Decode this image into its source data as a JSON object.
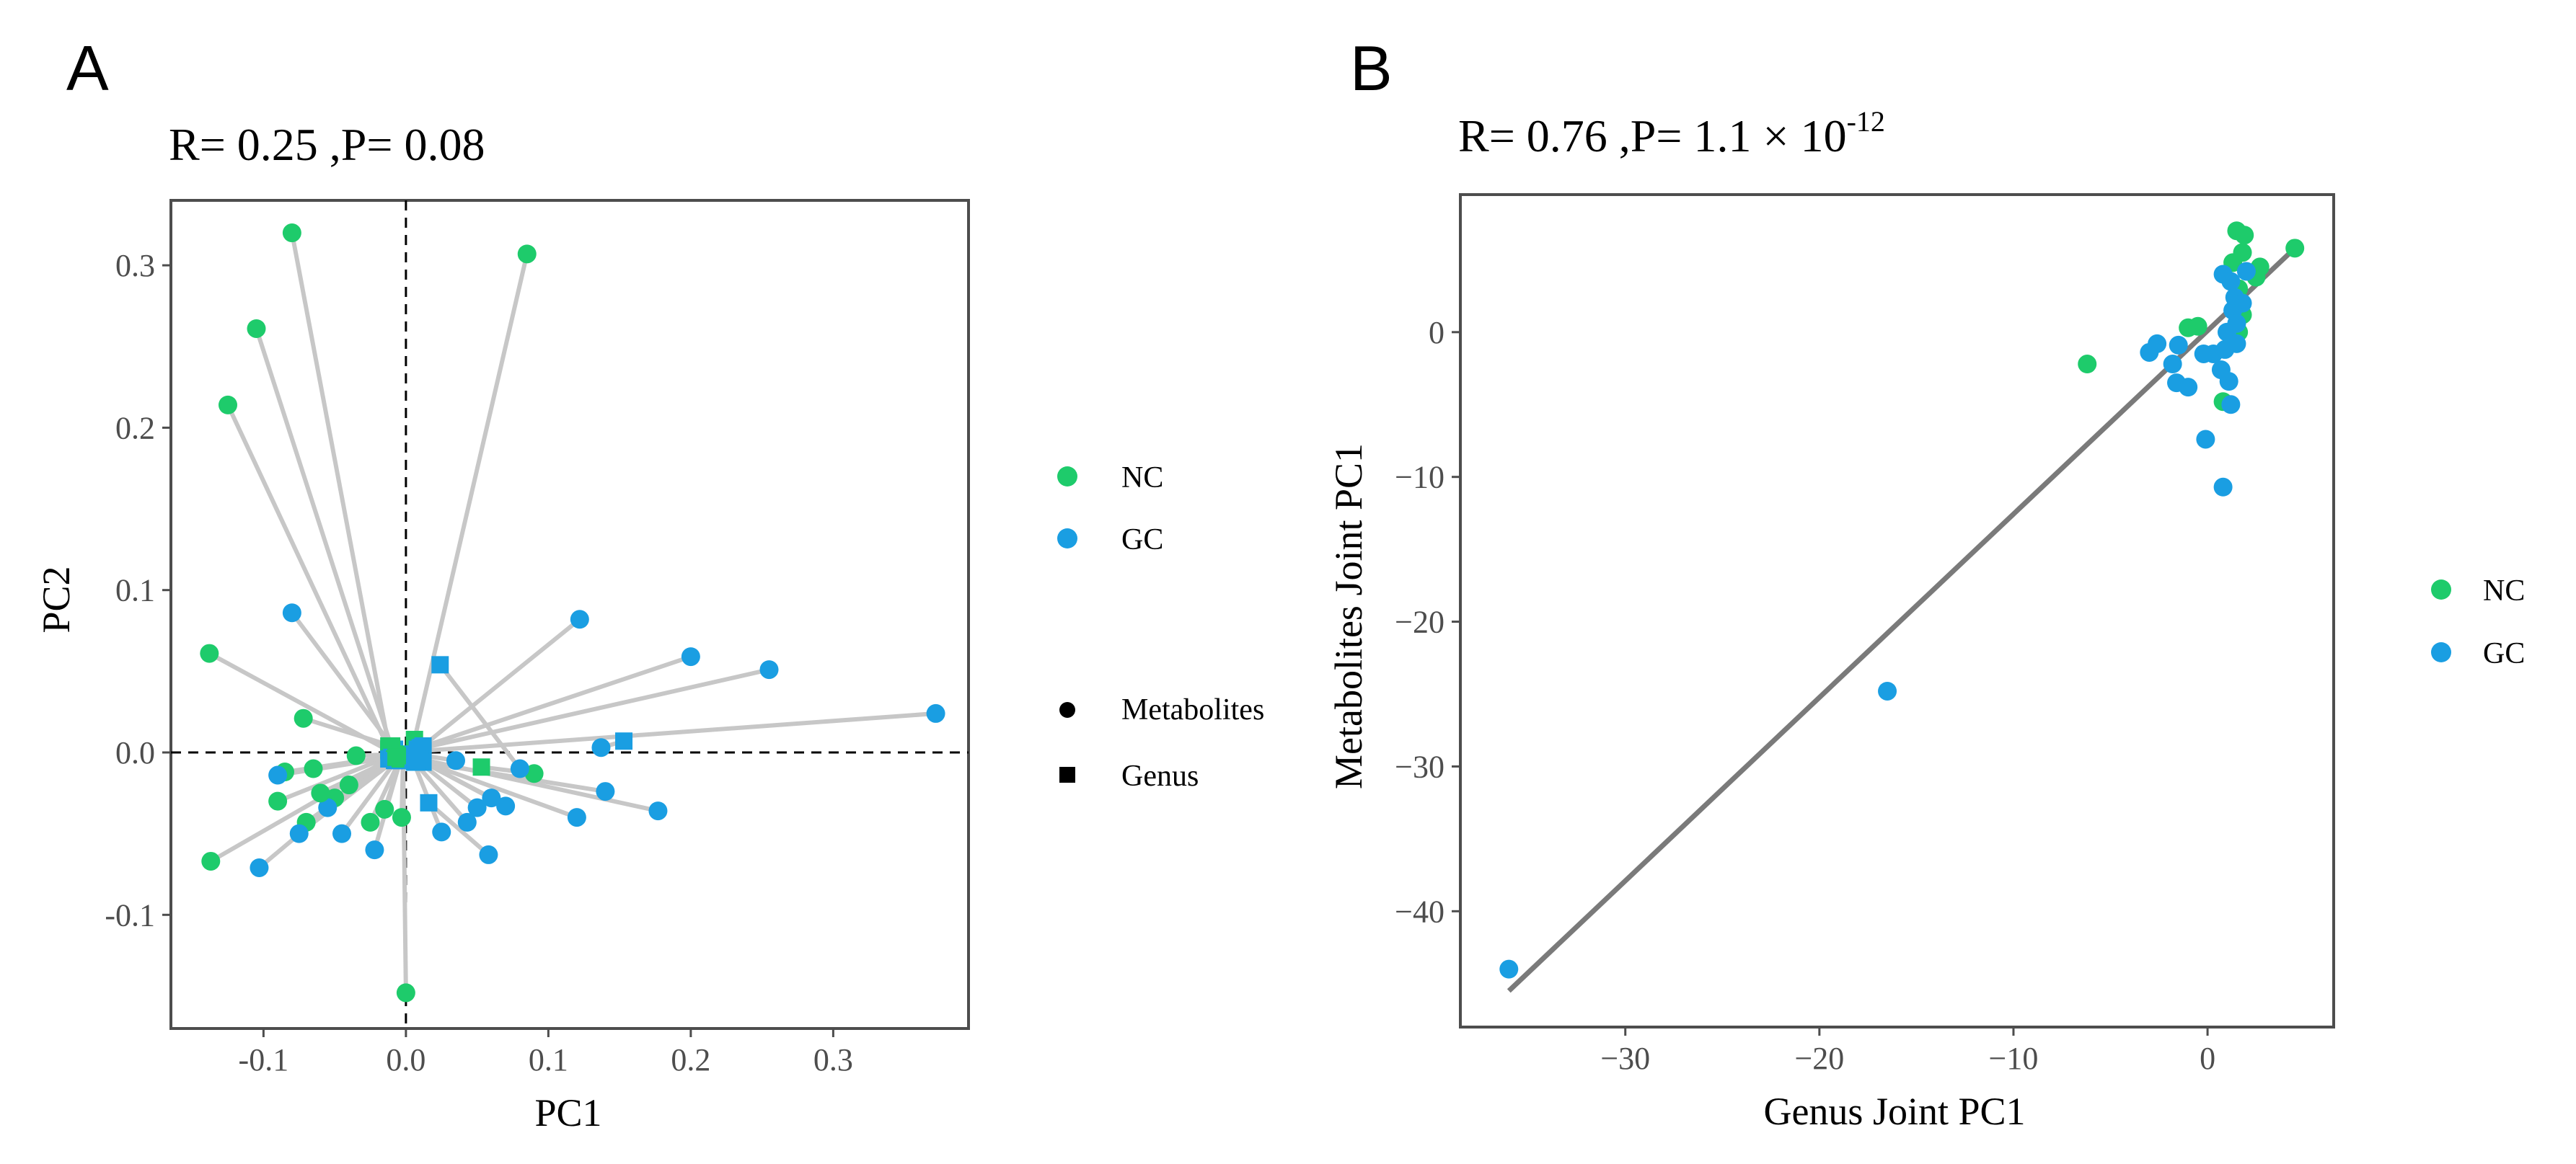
{
  "colors": {
    "nc": "#1ecb6b",
    "gc": "#1a9ee2",
    "line": "#c7c7c7",
    "fit": "#7a7a7a",
    "frame": "#4d4d4d"
  },
  "legend_a": {
    "groups": [
      "NC",
      "GC"
    ],
    "shapes": [
      "Metabolites",
      "Genus"
    ]
  },
  "legend_b": {
    "groups": [
      "NC",
      "GC"
    ]
  },
  "chart_data": [
    {
      "panel": "A",
      "type": "scatter",
      "stat": "R= 0.25 ,P= 0.08",
      "xlabel": "PC1",
      "ylabel": "PC2",
      "xlim": [
        -0.165,
        0.395
      ],
      "ylim": [
        -0.17,
        0.34
      ],
      "xticks": [
        -0.1,
        0.0,
        0.1,
        0.2,
        0.3
      ],
      "xtick_labels": [
        "-0.1",
        "0.0",
        "0.1",
        "0.2",
        "0.3"
      ],
      "yticks": [
        -0.1,
        0.0,
        0.1,
        0.2,
        0.3
      ],
      "ytick_labels": [
        "-0.1",
        "0.0",
        "0.1",
        "0.2",
        "0.3"
      ],
      "reference_lines": {
        "x": 0,
        "y": 0
      },
      "pairs": [
        {
          "group": "NC",
          "metabolite": [
            -0.08,
            0.32
          ],
          "genus": [
            -0.012,
            0.004
          ]
        },
        {
          "group": "NC",
          "metabolite": [
            0.085,
            0.307
          ],
          "genus": [
            0.006,
            0.008
          ]
        },
        {
          "group": "NC",
          "metabolite": [
            -0.105,
            0.261
          ],
          "genus": [
            -0.01,
            0.003
          ]
        },
        {
          "group": "NC",
          "metabolite": [
            -0.125,
            0.214
          ],
          "genus": [
            -0.012,
            0.002
          ]
        },
        {
          "group": "GC",
          "metabolite": [
            -0.08,
            0.086
          ],
          "genus": [
            -0.008,
            0.002
          ]
        },
        {
          "group": "NC",
          "metabolite": [
            -0.138,
            0.061
          ],
          "genus": [
            -0.012,
            0.001
          ]
        },
        {
          "group": "NC",
          "metabolite": [
            -0.072,
            0.021
          ],
          "genus": [
            -0.01,
            0.004
          ]
        },
        {
          "group": "GC",
          "metabolite": [
            0.122,
            0.082
          ],
          "genus": [
            0.012,
            0.004
          ]
        },
        {
          "group": "GC",
          "metabolite": [
            0.2,
            0.059
          ],
          "genus": [
            0.01,
            0.003
          ]
        },
        {
          "group": "GC",
          "metabolite": [
            0.255,
            0.051
          ],
          "genus": [
            0.008,
            0.002
          ]
        },
        {
          "group": "GC",
          "metabolite": [
            0.372,
            0.024
          ],
          "genus": [
            0.012,
            0.001
          ]
        },
        {
          "group": "GC",
          "metabolite": [
            0.137,
            0.003
          ],
          "genus": [
            0.153,
            0.007
          ]
        },
        {
          "group": "NC",
          "metabolite": [
            0.09,
            -0.013
          ],
          "genus": [
            0.053,
            -0.009
          ]
        },
        {
          "group": "GC",
          "metabolite": [
            0.08,
            -0.01
          ],
          "genus": [
            0.024,
            0.054
          ]
        },
        {
          "group": "GC",
          "metabolite": [
            0.177,
            -0.036
          ],
          "genus": [
            0.01,
            -0.004
          ]
        },
        {
          "group": "GC",
          "metabolite": [
            0.14,
            -0.024
          ],
          "genus": [
            0.012,
            -0.006
          ]
        },
        {
          "group": "GC",
          "metabolite": [
            0.12,
            -0.04
          ],
          "genus": [
            0.01,
            -0.005
          ]
        },
        {
          "group": "GC",
          "metabolite": [
            0.058,
            -0.063
          ],
          "genus": [
            0.016,
            -0.031
          ]
        },
        {
          "group": "NC",
          "metabolite": [
            -0.137,
            -0.067
          ],
          "genus": [
            -0.01,
            -0.003
          ]
        },
        {
          "group": "GC",
          "metabolite": [
            -0.103,
            -0.071
          ],
          "genus": [
            -0.012,
            -0.004
          ]
        },
        {
          "group": "NC",
          "metabolite": [
            0.0,
            -0.148
          ],
          "genus": [
            -0.002,
            -0.002
          ]
        },
        {
          "group": "NC",
          "metabolite": [
            -0.09,
            -0.03
          ],
          "genus": [
            -0.01,
            -0.002
          ]
        },
        {
          "group": "NC",
          "metabolite": [
            -0.085,
            -0.012
          ],
          "genus": [
            -0.008,
            -0.002
          ]
        },
        {
          "group": "GC",
          "metabolite": [
            -0.09,
            -0.014
          ],
          "genus": [
            -0.01,
            -0.003
          ]
        },
        {
          "group": "NC",
          "metabolite": [
            -0.065,
            -0.01
          ],
          "genus": [
            -0.006,
            -0.002
          ]
        },
        {
          "group": "NC",
          "metabolite": [
            -0.035,
            -0.002
          ],
          "genus": [
            -0.004,
            -0.001
          ]
        },
        {
          "group": "NC",
          "metabolite": [
            -0.05,
            -0.028
          ],
          "genus": [
            -0.006,
            -0.003
          ]
        },
        {
          "group": "GC",
          "metabolite": [
            -0.055,
            -0.034
          ],
          "genus": [
            -0.006,
            -0.004
          ]
        },
        {
          "group": "NC",
          "metabolite": [
            -0.07,
            -0.043
          ],
          "genus": [
            -0.008,
            -0.004
          ]
        },
        {
          "group": "GC",
          "metabolite": [
            -0.075,
            -0.05
          ],
          "genus": [
            -0.008,
            -0.005
          ]
        },
        {
          "group": "GC",
          "metabolite": [
            -0.045,
            -0.05
          ],
          "genus": [
            -0.006,
            -0.004
          ]
        },
        {
          "group": "GC",
          "metabolite": [
            -0.022,
            -0.06
          ],
          "genus": [
            -0.004,
            -0.005
          ]
        },
        {
          "group": "NC",
          "metabolite": [
            -0.025,
            -0.043
          ],
          "genus": [
            -0.004,
            -0.004
          ]
        },
        {
          "group": "NC",
          "metabolite": [
            -0.015,
            -0.035
          ],
          "genus": [
            -0.003,
            -0.003
          ]
        },
        {
          "group": "NC",
          "metabolite": [
            -0.003,
            -0.04
          ],
          "genus": [
            -0.002,
            -0.004
          ]
        },
        {
          "group": "GC",
          "metabolite": [
            0.05,
            -0.034
          ],
          "genus": [
            0.008,
            -0.005
          ]
        },
        {
          "group": "GC",
          "metabolite": [
            0.043,
            -0.043
          ],
          "genus": [
            0.006,
            -0.006
          ]
        },
        {
          "group": "GC",
          "metabolite": [
            0.06,
            -0.028
          ],
          "genus": [
            0.008,
            -0.004
          ]
        },
        {
          "group": "GC",
          "metabolite": [
            0.07,
            -0.033
          ],
          "genus": [
            0.008,
            -0.004
          ]
        },
        {
          "group": "GC",
          "metabolite": [
            0.025,
            -0.049
          ],
          "genus": [
            0.005,
            -0.005
          ]
        },
        {
          "group": "GC",
          "metabolite": [
            0.035,
            -0.005
          ],
          "genus": [
            0.005,
            -0.001
          ]
        },
        {
          "group": "NC",
          "metabolite": [
            -0.04,
            -0.02
          ],
          "genus": [
            -0.006,
            -0.002
          ]
        },
        {
          "group": "NC",
          "metabolite": [
            -0.06,
            -0.025
          ],
          "genus": [
            -0.007,
            -0.003
          ]
        }
      ]
    },
    {
      "panel": "B",
      "type": "scatter",
      "stat": {
        "prefix": "R= 0.76 ,P= 1.1 × 10",
        "exponent": "-12"
      },
      "xlabel": "Genus Joint PC1",
      "ylabel": "Metabolites Joint PC1",
      "xlim": [
        -38.5,
        6.5
      ],
      "ylim": [
        -48,
        9.5
      ],
      "xticks": [
        -30,
        -20,
        -10,
        0
      ],
      "xtick_labels": [
        "−30",
        "−20",
        "−10",
        "0"
      ],
      "yticks": [
        -40,
        -30,
        -20,
        -10,
        0
      ],
      "ytick_labels": [
        "−40",
        "−30",
        "−20",
        "−10",
        "0"
      ],
      "fit_line": {
        "x": [
          -36,
          4.5
        ],
        "y": [
          -45.5,
          5.8
        ]
      },
      "points": [
        {
          "group": "GC",
          "x": -36,
          "y": -44
        },
        {
          "group": "GC",
          "x": -16.5,
          "y": -24.8
        },
        {
          "group": "NC",
          "x": -6.2,
          "y": -2.2
        },
        {
          "group": "NC",
          "x": 4.5,
          "y": 5.8
        },
        {
          "group": "NC",
          "x": 1.5,
          "y": 7
        },
        {
          "group": "NC",
          "x": 1.9,
          "y": 6.7
        },
        {
          "group": "NC",
          "x": 1.8,
          "y": 5.5
        },
        {
          "group": "NC",
          "x": 2.7,
          "y": 4.5
        },
        {
          "group": "NC",
          "x": 1.3,
          "y": 4.8
        },
        {
          "group": "NC",
          "x": 2.5,
          "y": 3.8
        },
        {
          "group": "NC",
          "x": 1.6,
          "y": 3
        },
        {
          "group": "NC",
          "x": 1.8,
          "y": 1.2
        },
        {
          "group": "NC",
          "x": 1.6,
          "y": 0
        },
        {
          "group": "NC",
          "x": -1,
          "y": 0.3
        },
        {
          "group": "NC",
          "x": -0.5,
          "y": 0.4
        },
        {
          "group": "NC",
          "x": 0.8,
          "y": -4.8
        },
        {
          "group": "GC",
          "x": 0.8,
          "y": 4
        },
        {
          "group": "GC",
          "x": 1.2,
          "y": 3.5
        },
        {
          "group": "GC",
          "x": 2,
          "y": 4.2
        },
        {
          "group": "GC",
          "x": 1.4,
          "y": 2.4
        },
        {
          "group": "GC",
          "x": 1.8,
          "y": 2
        },
        {
          "group": "GC",
          "x": 1.3,
          "y": 1.5
        },
        {
          "group": "GC",
          "x": 1.5,
          "y": 0.6
        },
        {
          "group": "GC",
          "x": 1,
          "y": 0
        },
        {
          "group": "GC",
          "x": 1.5,
          "y": -0.8
        },
        {
          "group": "GC",
          "x": 0.9,
          "y": -1.2
        },
        {
          "group": "GC",
          "x": 0.3,
          "y": -1.5
        },
        {
          "group": "GC",
          "x": -0.2,
          "y": -1.5
        },
        {
          "group": "GC",
          "x": 0.7,
          "y": -2.6
        },
        {
          "group": "GC",
          "x": 1.1,
          "y": -3.4
        },
        {
          "group": "GC",
          "x": 1.2,
          "y": -5
        },
        {
          "group": "GC",
          "x": -0.1,
          "y": -7.4
        },
        {
          "group": "GC",
          "x": 0.8,
          "y": -10.7
        },
        {
          "group": "GC",
          "x": -1,
          "y": -3.8
        },
        {
          "group": "GC",
          "x": -1.6,
          "y": -3.5
        },
        {
          "group": "GC",
          "x": -1.8,
          "y": -2.2
        },
        {
          "group": "GC",
          "x": -2.6,
          "y": -0.8
        },
        {
          "group": "GC",
          "x": -3,
          "y": -1.4
        },
        {
          "group": "GC",
          "x": -1.5,
          "y": -0.9
        }
      ]
    }
  ]
}
